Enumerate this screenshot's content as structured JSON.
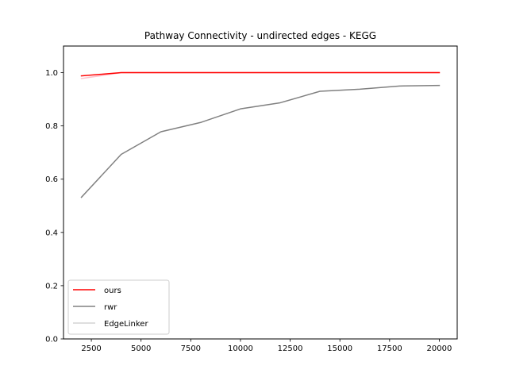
{
  "chart_data": {
    "type": "line",
    "title": "Pathway Connectivity - undirected edges - KEGG",
    "xlabel": "",
    "ylabel": "",
    "xlim": [
      1100,
      20900
    ],
    "ylim": [
      0.0,
      1.1
    ],
    "xticks": [
      2500,
      5000,
      7500,
      10000,
      12500,
      15000,
      17500,
      20000
    ],
    "yticks": [
      0.0,
      0.2,
      0.4,
      0.6,
      0.8,
      1.0
    ],
    "xtick_labels": [
      "2500",
      "5000",
      "7500",
      "10000",
      "12500",
      "15000",
      "17500",
      "20000"
    ],
    "ytick_labels": [
      "0.0",
      "0.2",
      "0.4",
      "0.6",
      "0.8",
      "1.0"
    ],
    "grid": false,
    "legend_position": "lower-left",
    "series": [
      {
        "name": "ours",
        "color": "#ff0000",
        "x": [
          2000,
          4000,
          6000,
          8000,
          10000,
          12000,
          14000,
          16000,
          18000,
          20000
        ],
        "y": [
          0.988,
          1.0,
          1.0,
          1.0,
          1.0,
          1.0,
          1.0,
          1.0,
          1.0,
          1.0
        ]
      },
      {
        "name": "rwr",
        "color": "#808080",
        "x": [
          2000,
          4000,
          6000,
          8000,
          10000,
          12000,
          14000,
          16000,
          18000,
          20000
        ],
        "y": [
          0.532,
          0.693,
          0.778,
          0.813,
          0.864,
          0.887,
          0.93,
          0.938,
          0.95,
          0.952
        ]
      },
      {
        "name": "EdgeLinker",
        "color": "#ffc0cb",
        "legend_color": "#d3d3d3",
        "x": [
          2000,
          4000,
          6000,
          8000,
          10000,
          12000,
          14000,
          16000,
          18000,
          20000
        ],
        "y": [
          0.978,
          1.0,
          1.0,
          1.0,
          1.0,
          1.0,
          1.0,
          1.0,
          1.0,
          1.0
        ]
      }
    ]
  }
}
